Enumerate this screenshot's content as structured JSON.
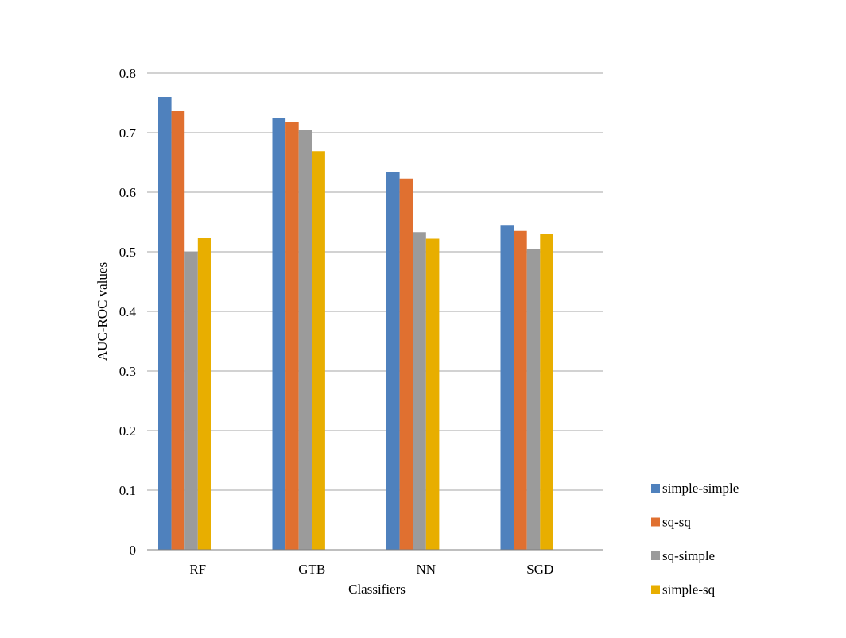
{
  "chart_data": {
    "type": "bar",
    "categories": [
      "RF",
      "GTB",
      "NN",
      "SGD"
    ],
    "series": [
      {
        "name": "simple-simple",
        "color": "#4F81BD",
        "values": [
          0.76,
          0.725,
          0.634,
          0.545
        ]
      },
      {
        "name": "sq-sq",
        "color": "#E07030",
        "values": [
          0.736,
          0.718,
          0.623,
          0.535
        ]
      },
      {
        "name": "sq-simple",
        "color": "#9B9B9B",
        "values": [
          0.5,
          0.705,
          0.533,
          0.504
        ]
      },
      {
        "name": "simple-sq",
        "color": "#E8AE00",
        "values": [
          0.523,
          0.669,
          0.522,
          0.53
        ]
      }
    ],
    "yticks": [
      "0",
      "0.1",
      "0.2",
      "0.3",
      "0.4",
      "0.5",
      "0.6",
      "0.7",
      "0.8"
    ],
    "xlabel": "Classifiers",
    "ylabel": "AUC-ROC values",
    "ylim": [
      0,
      0.8
    ],
    "grid": true,
    "legend_position": "right"
  }
}
